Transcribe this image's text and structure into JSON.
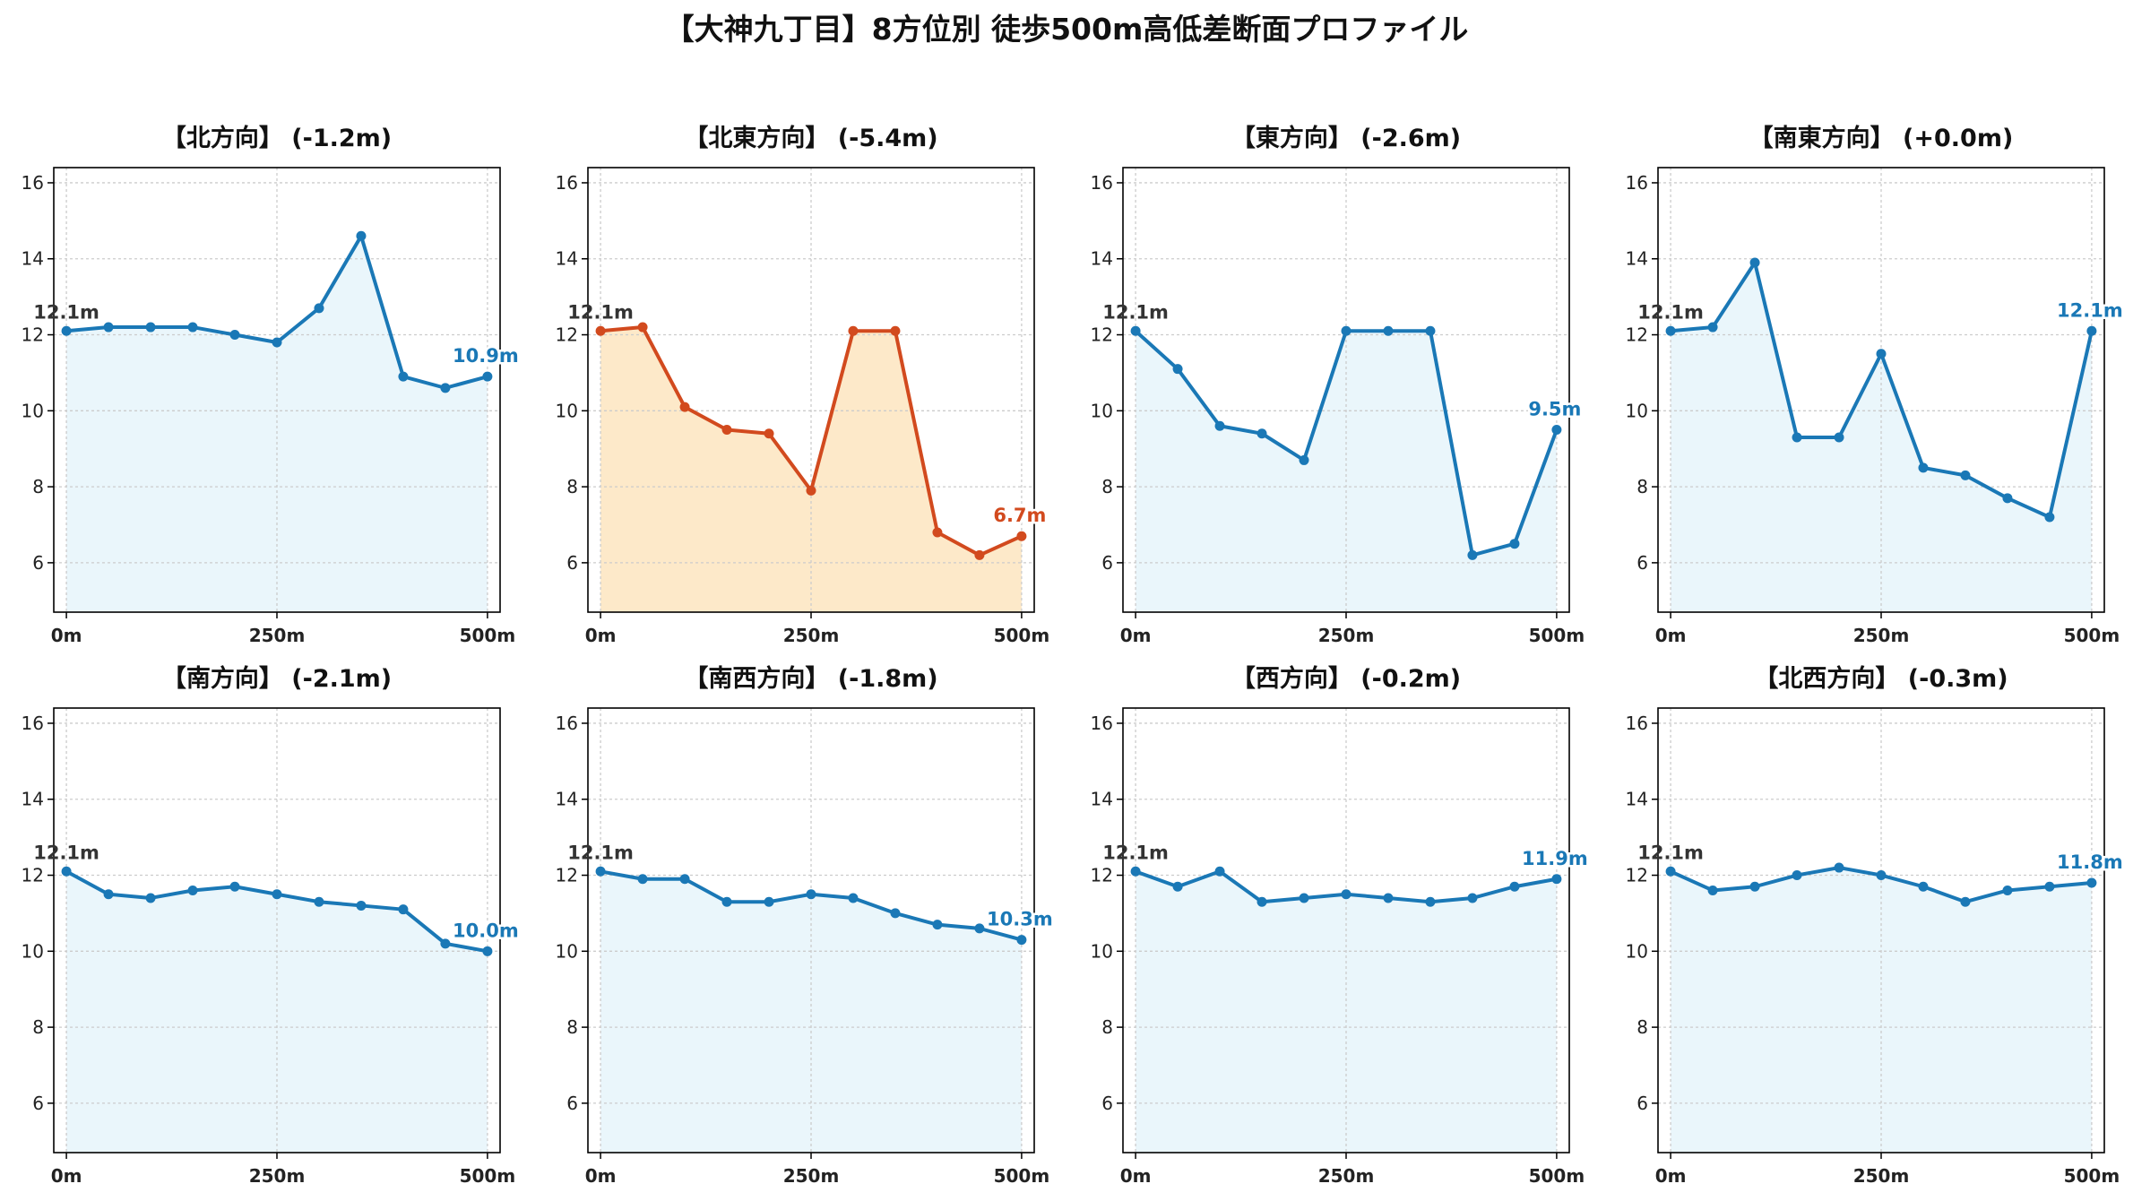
{
  "suptitle": "【大神九丁目】8方位別 徒歩500m高低差断面プロファイル",
  "colors": {
    "normal_line": "#1a78b6",
    "normal_fill": "#eaf6fb",
    "highlight_line": "#d24a1e",
    "highlight_fill": "#fde9c9",
    "start_label": "#333333",
    "grid": "#cccccc"
  },
  "chart_data": [
    {
      "type": "line",
      "title": "【北方向】 (-1.2m)",
      "x": [
        0,
        50,
        100,
        150,
        200,
        250,
        300,
        350,
        400,
        450,
        500
      ],
      "values": [
        12.1,
        12.2,
        12.2,
        12.2,
        12.0,
        11.8,
        12.7,
        14.6,
        10.9,
        10.6,
        10.9
      ],
      "start_label": "12.1m",
      "end_label": "10.9m",
      "highlight": false,
      "ylim": [
        4.7,
        16.4
      ],
      "yticks": [
        6,
        8,
        10,
        12,
        14,
        16
      ],
      "xticks": [
        "0m",
        "250m",
        "500m"
      ],
      "grid": true
    },
    {
      "type": "line",
      "title": "【北東方向】 (-5.4m)",
      "x": [
        0,
        50,
        100,
        150,
        200,
        250,
        300,
        350,
        400,
        450,
        500
      ],
      "values": [
        12.1,
        12.2,
        10.1,
        9.5,
        9.4,
        7.9,
        12.1,
        12.1,
        6.8,
        6.2,
        6.7
      ],
      "start_label": "12.1m",
      "end_label": "6.7m",
      "highlight": true,
      "ylim": [
        4.7,
        16.4
      ],
      "yticks": [
        6,
        8,
        10,
        12,
        14,
        16
      ],
      "xticks": [
        "0m",
        "250m",
        "500m"
      ],
      "grid": true
    },
    {
      "type": "line",
      "title": "【東方向】 (-2.6m)",
      "x": [
        0,
        50,
        100,
        150,
        200,
        250,
        300,
        350,
        400,
        450,
        500
      ],
      "values": [
        12.1,
        11.1,
        9.6,
        9.4,
        8.7,
        12.1,
        12.1,
        12.1,
        6.2,
        6.5,
        9.5
      ],
      "start_label": "12.1m",
      "end_label": "9.5m",
      "highlight": false,
      "ylim": [
        4.7,
        16.4
      ],
      "yticks": [
        6,
        8,
        10,
        12,
        14,
        16
      ],
      "xticks": [
        "0m",
        "250m",
        "500m"
      ],
      "grid": true
    },
    {
      "type": "line",
      "title": "【南東方向】 (+0.0m)",
      "x": [
        0,
        50,
        100,
        150,
        200,
        250,
        300,
        350,
        400,
        450,
        500
      ],
      "values": [
        12.1,
        12.2,
        13.9,
        9.3,
        9.3,
        11.5,
        8.5,
        8.3,
        7.7,
        7.2,
        12.1
      ],
      "start_label": "12.1m",
      "end_label": "12.1m",
      "highlight": false,
      "ylim": [
        4.7,
        16.4
      ],
      "yticks": [
        6,
        8,
        10,
        12,
        14,
        16
      ],
      "xticks": [
        "0m",
        "250m",
        "500m"
      ],
      "grid": true
    },
    {
      "type": "line",
      "title": "【南方向】 (-2.1m)",
      "x": [
        0,
        50,
        100,
        150,
        200,
        250,
        300,
        350,
        400,
        450,
        500
      ],
      "values": [
        12.1,
        11.5,
        11.4,
        11.6,
        11.7,
        11.5,
        11.3,
        11.2,
        11.1,
        10.2,
        10.0
      ],
      "start_label": "12.1m",
      "end_label": "10.0m",
      "highlight": false,
      "ylim": [
        4.7,
        16.4
      ],
      "yticks": [
        6,
        8,
        10,
        12,
        14,
        16
      ],
      "xticks": [
        "0m",
        "250m",
        "500m"
      ],
      "grid": true
    },
    {
      "type": "line",
      "title": "【南西方向】 (-1.8m)",
      "x": [
        0,
        50,
        100,
        150,
        200,
        250,
        300,
        350,
        400,
        450,
        500
      ],
      "values": [
        12.1,
        11.9,
        11.9,
        11.3,
        11.3,
        11.5,
        11.4,
        11.0,
        10.7,
        10.6,
        10.3
      ],
      "start_label": "12.1m",
      "end_label": "10.3m",
      "highlight": false,
      "ylim": [
        4.7,
        16.4
      ],
      "yticks": [
        6,
        8,
        10,
        12,
        14,
        16
      ],
      "xticks": [
        "0m",
        "250m",
        "500m"
      ],
      "grid": true
    },
    {
      "type": "line",
      "title": "【西方向】 (-0.2m)",
      "x": [
        0,
        50,
        100,
        150,
        200,
        250,
        300,
        350,
        400,
        450,
        500
      ],
      "values": [
        12.1,
        11.7,
        12.1,
        11.3,
        11.4,
        11.5,
        11.4,
        11.3,
        11.4,
        11.7,
        11.9
      ],
      "start_label": "12.1m",
      "end_label": "11.9m",
      "highlight": false,
      "ylim": [
        4.7,
        16.4
      ],
      "yticks": [
        6,
        8,
        10,
        12,
        14,
        16
      ],
      "xticks": [
        "0m",
        "250m",
        "500m"
      ],
      "grid": true
    },
    {
      "type": "line",
      "title": "【北西方向】 (-0.3m)",
      "x": [
        0,
        50,
        100,
        150,
        200,
        250,
        300,
        350,
        400,
        450,
        500
      ],
      "values": [
        12.1,
        11.6,
        11.7,
        12.0,
        12.2,
        12.0,
        11.7,
        11.3,
        11.6,
        11.7,
        11.8
      ],
      "start_label": "12.1m",
      "end_label": "11.8m",
      "highlight": false,
      "ylim": [
        4.7,
        16.4
      ],
      "yticks": [
        6,
        8,
        10,
        12,
        14,
        16
      ],
      "xticks": [
        "0m",
        "250m",
        "500m"
      ],
      "grid": true
    }
  ]
}
